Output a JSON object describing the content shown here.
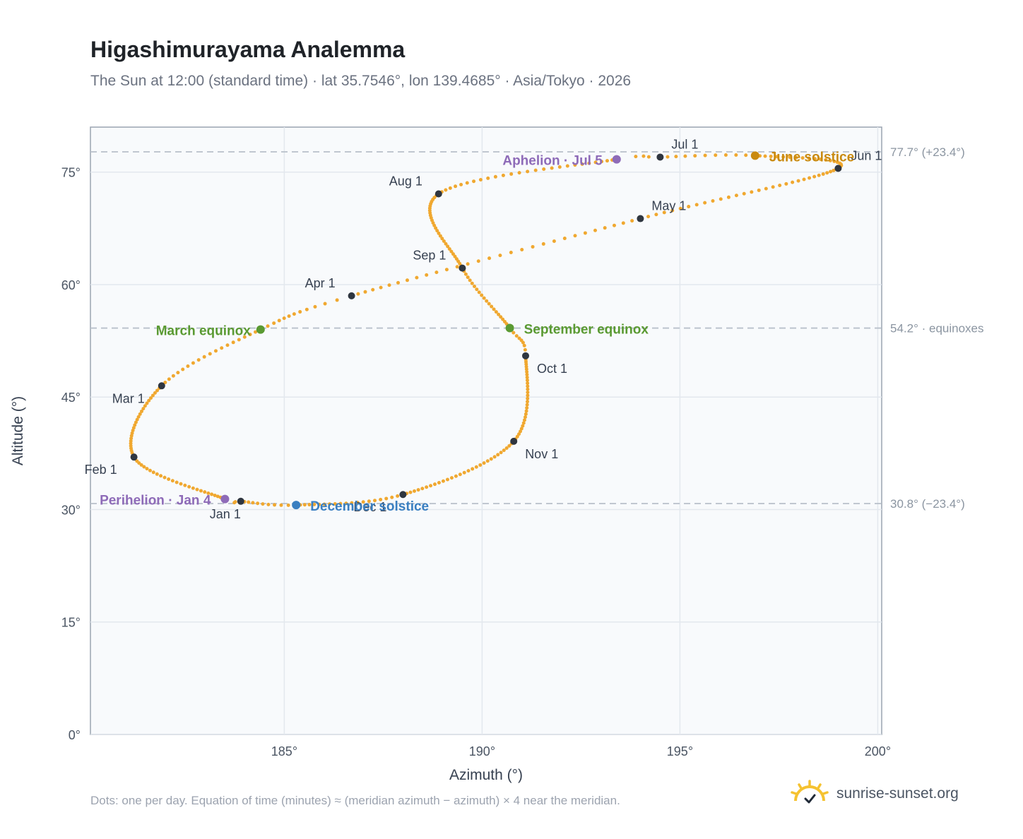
{
  "header": {
    "title": "Higashimurayama Analemma",
    "subtitle": "The Sun at 12:00 (standard time) · lat 35.7546°, lon 139.4685° · Asia/Tokyo · 2026"
  },
  "footer": {
    "note": "Dots: one per day. Equation of time (minutes) ≈ (meridian azimuth − azimuth) × 4 near the meridian.",
    "brand": "sunrise-sunset.org",
    "logo_icon": "sun-logo-icon"
  },
  "chart_data": {
    "type": "scatter",
    "xlabel": "Azimuth (°)",
    "ylabel": "Altitude (°)",
    "xlim": [
      180.1,
      200.1
    ],
    "ylim": [
      0,
      81
    ],
    "xticks": [
      185,
      190,
      195,
      200
    ],
    "xtick_labels": [
      "185°",
      "190°",
      "195°",
      "200°"
    ],
    "yticks": [
      0,
      15,
      30,
      45,
      60,
      75
    ],
    "ytick_labels": [
      "0°",
      "15°",
      "30°",
      "45°",
      "60°",
      "75°"
    ],
    "grid": true,
    "colors": {
      "path": "#f0a830",
      "month_marker": "#2f3640",
      "equinox": "#5a9a32",
      "june_solstice": "#c98a10",
      "december_solstice": "#3a7fc1",
      "apsides": "#8e6bb8",
      "reference_line": "#b8c0ca",
      "plot_background": "#f8fafc"
    },
    "reference_lines": [
      {
        "y": 77.7,
        "label": "77.7° (+23.4°)"
      },
      {
        "y": 54.2,
        "label": "54.2° · equinoxes"
      },
      {
        "y": 30.8,
        "label": "30.8° (−23.4°)"
      }
    ],
    "series": [
      {
        "points": [
          {
            "doy": 1,
            "x": 183.9,
            "y": 31.1
          },
          {
            "doy": 4,
            "x": 183.5,
            "y": 31.4
          },
          {
            "doy": 32,
            "x": 181.2,
            "y": 37.0
          },
          {
            "doy": 60,
            "x": 181.9,
            "y": 46.5
          },
          {
            "doy": 79,
            "x": 184.4,
            "y": 54.0
          },
          {
            "doy": 91,
            "x": 186.7,
            "y": 58.5
          },
          {
            "doy": 121,
            "x": 194.0,
            "y": 68.8
          },
          {
            "doy": 152,
            "x": 199.0,
            "y": 75.5
          },
          {
            "doy": 172,
            "x": 196.9,
            "y": 77.2
          },
          {
            "doy": 182,
            "x": 194.5,
            "y": 77.0
          },
          {
            "doy": 186,
            "x": 193.4,
            "y": 76.7
          },
          {
            "doy": 213,
            "x": 188.9,
            "y": 72.1
          },
          {
            "doy": 244,
            "x": 189.5,
            "y": 62.2
          },
          {
            "doy": 266,
            "x": 190.7,
            "y": 54.2
          },
          {
            "doy": 274,
            "x": 191.1,
            "y": 50.5
          },
          {
            "doy": 305,
            "x": 190.8,
            "y": 39.1
          },
          {
            "doy": 335,
            "x": 188.0,
            "y": 32.0
          },
          {
            "doy": 355,
            "x": 185.3,
            "y": 30.6
          },
          {
            "doy": 365,
            "x": 183.9,
            "y": 31.1
          }
        ]
      }
    ],
    "month_markers": [
      {
        "label": "Jan 1",
        "x": 183.9,
        "y": 31.1
      },
      {
        "label": "Feb 1",
        "x": 181.2,
        "y": 37.0
      },
      {
        "label": "Mar 1",
        "x": 181.9,
        "y": 46.5
      },
      {
        "label": "Apr 1",
        "x": 186.7,
        "y": 58.5
      },
      {
        "label": "May 1",
        "x": 194.0,
        "y": 68.8
      },
      {
        "label": "Jun 1",
        "x": 199.0,
        "y": 75.5
      },
      {
        "label": "Jul 1",
        "x": 194.5,
        "y": 77.0
      },
      {
        "label": "Aug 1",
        "x": 188.9,
        "y": 72.1
      },
      {
        "label": "Sep 1",
        "x": 189.5,
        "y": 62.2
      },
      {
        "label": "Oct 1",
        "x": 191.1,
        "y": 50.5
      },
      {
        "label": "Nov 1",
        "x": 190.8,
        "y": 39.1
      },
      {
        "label": "Dec 1",
        "x": 188.0,
        "y": 32.0
      }
    ],
    "events": [
      {
        "label": "March equinox",
        "x": 184.4,
        "y": 54.0,
        "kind": "equinox"
      },
      {
        "label": "September equinox",
        "x": 190.7,
        "y": 54.2,
        "kind": "equinox"
      },
      {
        "label": "June solstice",
        "x": 196.9,
        "y": 77.2,
        "kind": "june_solstice"
      },
      {
        "label": "December solstice",
        "x": 185.3,
        "y": 30.6,
        "kind": "december_solstice"
      },
      {
        "label": "Perihelion · Jan 4",
        "x": 183.5,
        "y": 31.4,
        "kind": "apsides"
      },
      {
        "label": "Aphelion · Jul 5",
        "x": 193.4,
        "y": 76.7,
        "kind": "apsides"
      }
    ]
  }
}
